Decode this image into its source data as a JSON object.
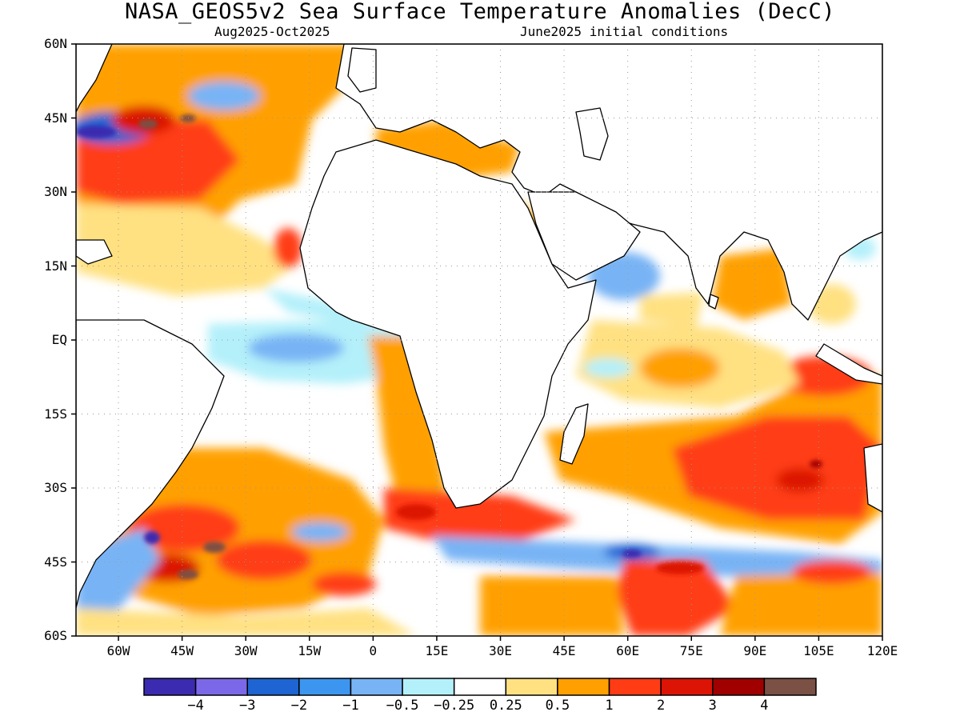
{
  "title": "NASA_GEOS5v2 Sea Surface Temperature Anomalies (DecC)",
  "subtitle_left": "Aug2025-Oct2025",
  "subtitle_right": "June2025 initial conditions",
  "map": {
    "projection": "equirectangular",
    "lon_range": [
      -70,
      120
    ],
    "lat_range": [
      -60,
      60
    ],
    "grid": "dotted",
    "lat_labels": [
      "60N",
      "45N",
      "30N",
      "15N",
      "EQ",
      "15S",
      "30S",
      "45S",
      "60S"
    ],
    "lon_labels": [
      "60W",
      "45W",
      "30W",
      "15W",
      "0",
      "15E",
      "30E",
      "45E",
      "60E",
      "75E",
      "90E",
      "105E",
      "120E"
    ]
  },
  "colorbar": {
    "colors": [
      "#3a2bb0",
      "#7b68e8",
      "#1e64d2",
      "#3c96f0",
      "#78b4f5",
      "#b4f0fa",
      "#ffffff",
      "#ffe182",
      "#ffa000",
      "#ff3c14",
      "#dc1405",
      "#a00000",
      "#7b5045"
    ],
    "labels": [
      "−4",
      "−3",
      "−2",
      "−1",
      "−0.5",
      "−0.25",
      "0.25",
      "0.5",
      "1",
      "2",
      "3",
      "4"
    ]
  }
}
